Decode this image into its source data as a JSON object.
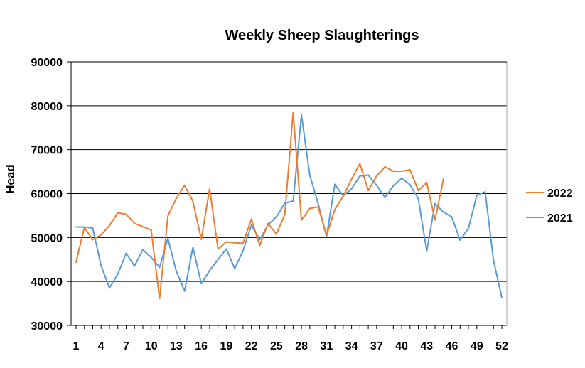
{
  "chart_data": {
    "type": "line",
    "title": "Weekly Sheep Slaughterings",
    "xlabel": "",
    "ylabel": "Head",
    "ylim": [
      30000,
      90000
    ],
    "yticks": [
      30000,
      40000,
      50000,
      60000,
      70000,
      80000,
      90000
    ],
    "xlim": [
      1,
      52
    ],
    "xticks": [
      1,
      4,
      7,
      10,
      13,
      16,
      19,
      22,
      25,
      28,
      31,
      34,
      37,
      40,
      43,
      46,
      49,
      52
    ],
    "grid": "horizontal",
    "legend_position": "right",
    "series": [
      {
        "name": "2022",
        "color": "#ED7D31",
        "x": [
          1,
          2,
          3,
          4,
          5,
          6,
          7,
          8,
          9,
          10,
          11,
          12,
          13,
          14,
          15,
          16,
          17,
          18,
          19,
          20,
          21,
          22,
          23,
          24,
          25,
          26,
          27,
          28,
          29,
          30,
          31,
          32,
          33,
          34,
          35,
          36,
          37,
          38,
          39,
          40,
          41,
          42,
          43,
          44,
          45
        ],
        "values": [
          44400,
          52300,
          49500,
          50600,
          52700,
          55600,
          55300,
          53200,
          52500,
          51700,
          36100,
          54900,
          58900,
          61900,
          58200,
          49600,
          61100,
          47400,
          49000,
          48800,
          48700,
          54200,
          48200,
          53200,
          50800,
          55200,
          78500,
          54000,
          56600,
          57000,
          50500,
          56400,
          59400,
          63300,
          66800,
          60700,
          64000,
          66100,
          65100,
          65100,
          65400,
          60700,
          62500,
          54000,
          63300
        ]
      },
      {
        "name": "2021",
        "color": "#5B9BD5",
        "x": [
          1,
          2,
          3,
          4,
          5,
          6,
          7,
          8,
          9,
          10,
          11,
          12,
          13,
          14,
          15,
          16,
          17,
          18,
          19,
          20,
          21,
          22,
          23,
          24,
          25,
          26,
          27,
          28,
          29,
          30,
          31,
          32,
          33,
          34,
          35,
          36,
          37,
          38,
          39,
          40,
          41,
          42,
          43,
          44,
          45,
          46,
          47,
          48,
          49,
          50,
          51,
          52
        ],
        "values": [
          52400,
          52400,
          52100,
          43600,
          38500,
          41700,
          46400,
          43500,
          47200,
          45500,
          43200,
          49800,
          42400,
          37800,
          47800,
          39500,
          42500,
          45000,
          47400,
          42900,
          47000,
          52800,
          49500,
          52900,
          54700,
          57800,
          58300,
          77900,
          64100,
          57700,
          50200,
          62100,
          59500,
          61100,
          64000,
          64200,
          61900,
          59100,
          61800,
          63500,
          62000,
          58800,
          46900,
          57700,
          55800,
          54700,
          49400,
          52100,
          59600,
          60400,
          44800,
          36300
        ]
      }
    ]
  }
}
